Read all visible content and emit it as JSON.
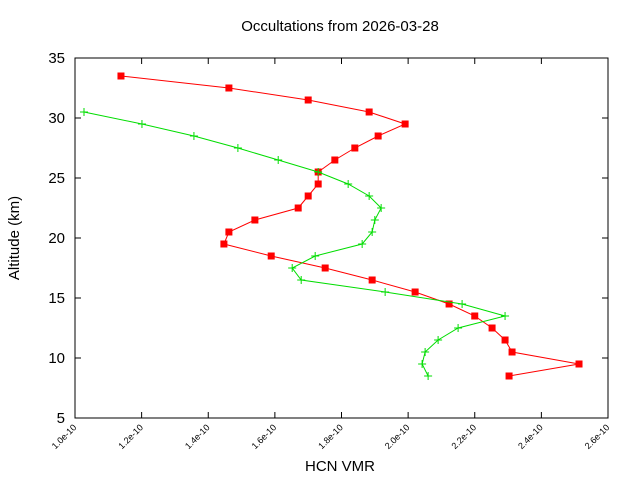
{
  "chart_data": {
    "type": "line",
    "title": "Occultations from 2026-03-28",
    "x_label": "HCN VMR",
    "y_label": "Altitude (km)",
    "xlim": [
      1e-10,
      2.6e-10
    ],
    "xticks": [
      {
        "value": 1e-10,
        "label": "1.0e-10"
      },
      {
        "value": 1.2e-10,
        "label": "1.2e-10"
      },
      {
        "value": 1.4e-10,
        "label": "1.4e-10"
      },
      {
        "value": 1.6e-10,
        "label": "1.6e-10"
      },
      {
        "value": 1.8e-10,
        "label": "1.8e-10"
      },
      {
        "value": 2e-10,
        "label": "2.0e-10"
      },
      {
        "value": 2.2e-10,
        "label": "2.2e-10"
      },
      {
        "value": 2.4e-10,
        "label": "2.4e-10"
      },
      {
        "value": 2.6e-10,
        "label": "2.6e-10"
      }
    ],
    "ylim": [
      5,
      35
    ],
    "yticks": [
      5,
      10,
      15,
      20,
      25,
      30,
      35
    ],
    "series": [
      {
        "color": "#ff0000",
        "marker": "square",
        "x": [
          1.138e-10,
          1.462e-10,
          1.7e-10,
          1.883e-10,
          1.991e-10,
          1.91e-10,
          1.84e-10,
          1.78e-10,
          1.73e-10,
          1.73e-10,
          1.7e-10,
          1.67e-10,
          1.54e-10,
          1.462e-10,
          1.447e-10,
          1.589e-10,
          1.751e-10,
          1.892e-10,
          2.021e-10,
          2.123e-10,
          2.2e-10,
          2.252e-10,
          2.291e-10,
          2.312e-10,
          2.513e-10,
          2.303e-10
        ],
        "values": [
          33.5,
          32.5,
          31.5,
          30.5,
          29.5,
          28.5,
          27.5,
          26.5,
          25.5,
          24.5,
          23.5,
          22.5,
          21.5,
          20.5,
          19.5,
          18.5,
          17.5,
          16.5,
          15.5,
          14.5,
          13.5,
          12.5,
          11.5,
          10.5,
          9.5,
          8.5
        ]
      },
      {
        "color": "#00dd00",
        "marker": "plus",
        "x": [
          1.027e-10,
          1.201e-10,
          1.357e-10,
          1.489e-10,
          1.61e-10,
          1.73e-10,
          1.82e-10,
          1.883e-10,
          1.919e-10,
          1.9e-10,
          1.892e-10,
          1.862e-10,
          1.721e-10,
          1.652e-10,
          1.679e-10,
          1.931e-10,
          2.162e-10,
          2.291e-10,
          2.15e-10,
          2.09e-10,
          2.051e-10,
          2.042e-10,
          2.06e-10
        ],
        "values": [
          30.5,
          29.5,
          28.5,
          27.5,
          26.5,
          25.5,
          24.5,
          23.5,
          22.5,
          21.5,
          20.5,
          19.5,
          18.5,
          17.5,
          16.5,
          15.5,
          14.5,
          13.5,
          12.5,
          11.5,
          10.5,
          9.5,
          8.5
        ]
      }
    ]
  }
}
